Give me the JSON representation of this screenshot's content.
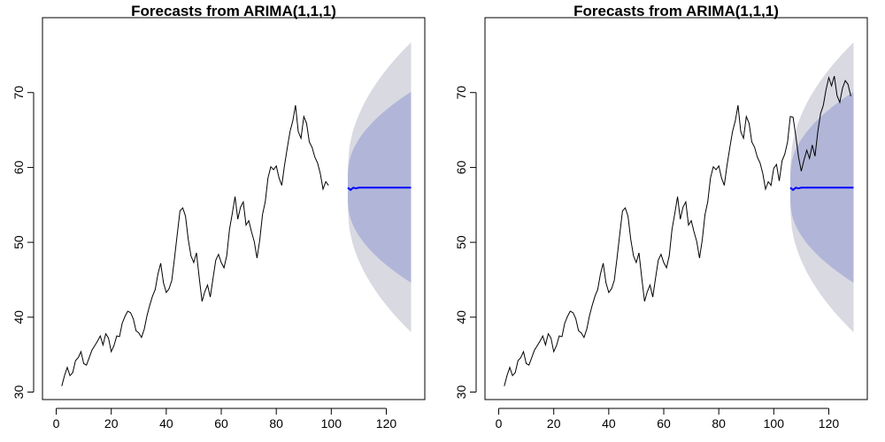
{
  "chart_data": [
    {
      "type": "line",
      "title": "Forecasts from ARIMA(1,1,1)",
      "xlabel": "",
      "ylabel": "",
      "xlim": [
        -5,
        134
      ],
      "ylim": [
        29,
        80
      ],
      "xticks": [
        "0",
        "20",
        "40",
        "60",
        "80",
        "100",
        "120"
      ],
      "yticks": [
        "30",
        "40",
        "50",
        "60",
        "70"
      ],
      "grid": false,
      "legend": "none",
      "series": [
        {
          "role": "observed",
          "color": "#000000",
          "x_start": 2,
          "values": [
            30.8,
            32.2,
            33.3,
            32.2,
            32.6,
            34.2,
            34.6,
            35.4,
            33.8,
            33.6,
            34.6,
            35.6,
            36.2,
            36.8,
            37.5,
            36.3,
            37.8,
            37.2,
            35.4,
            36.2,
            37.5,
            37.4,
            39.2,
            40.1,
            40.8,
            40.6,
            39.8,
            38.2,
            37.9,
            37.3,
            38.4,
            40.2,
            41.6,
            42.8,
            43.7,
            45.8,
            47.2,
            44.6,
            43.3,
            43.8,
            44.9,
            47.9,
            51.1,
            54.2,
            54.6,
            53.5,
            50.4,
            48.2,
            47.3,
            48.6,
            45.2,
            42.1,
            43.4,
            44.3,
            42.7,
            45.2,
            47.6,
            48.4,
            47.3,
            46.6,
            48.2,
            51.7,
            53.8,
            56.1,
            53.1,
            54.7,
            55.4,
            52.3,
            52.9,
            51.4,
            50.1,
            47.9,
            50.3,
            53.7,
            55.4,
            58.6,
            60.1,
            59.7,
            60.2,
            58.6,
            57.6,
            60.3,
            62.6,
            64.8,
            66.2,
            68.3,
            64.8,
            63.9,
            66.8,
            65.9,
            63.4,
            62.7,
            61.4,
            60.6,
            59.2,
            57.1,
            58.1,
            57.6
          ]
        },
        {
          "role": "forecast",
          "color": "#0000ff",
          "x_start": 106,
          "values": [
            57.3,
            57.0,
            57.3,
            57.2,
            57.3,
            57.3,
            57.3,
            57.3,
            57.3,
            57.3,
            57.3,
            57.3,
            57.3,
            57.3,
            57.3,
            57.3,
            57.3,
            57.3,
            57.3,
            57.3,
            57.3,
            57.3,
            57.3,
            57.3
          ]
        },
        {
          "role": "interval_80",
          "color": "#b1b6d8",
          "x_start": 106,
          "x_end": 129,
          "upper_start": 59.2,
          "upper_end": 70.1,
          "lower_start": 55.4,
          "lower_end": 44.6
        },
        {
          "role": "interval_95",
          "color": "#d9d9e2",
          "x_start": 106,
          "x_end": 129,
          "upper_start": 60.1,
          "upper_end": 76.7,
          "lower_start": 54.4,
          "lower_end": 38.0
        }
      ]
    },
    {
      "type": "line",
      "title": "Forecasts from ARIMA(1,1,1)",
      "xlabel": "",
      "ylabel": "",
      "xlim": [
        -5,
        134
      ],
      "ylim": [
        29,
        80
      ],
      "xticks": [
        "0",
        "20",
        "40",
        "60",
        "80",
        "100",
        "120"
      ],
      "yticks": [
        "30",
        "40",
        "50",
        "60",
        "70"
      ],
      "grid": false,
      "legend": "none",
      "series": [
        {
          "role": "observed",
          "color": "#000000",
          "x_start": 2,
          "values": [
            30.8,
            32.2,
            33.3,
            32.2,
            32.6,
            34.2,
            34.6,
            35.4,
            33.8,
            33.6,
            34.6,
            35.6,
            36.2,
            36.8,
            37.5,
            36.3,
            37.8,
            37.2,
            35.4,
            36.2,
            37.5,
            37.4,
            39.2,
            40.1,
            40.8,
            40.6,
            39.8,
            38.2,
            37.9,
            37.3,
            38.4,
            40.2,
            41.6,
            42.8,
            43.7,
            45.8,
            47.2,
            44.6,
            43.3,
            43.8,
            44.9,
            47.9,
            51.1,
            54.2,
            54.6,
            53.5,
            50.4,
            48.2,
            47.3,
            48.6,
            45.2,
            42.1,
            43.4,
            44.3,
            42.7,
            45.2,
            47.6,
            48.4,
            47.3,
            46.6,
            48.2,
            51.7,
            53.8,
            56.1,
            53.1,
            54.7,
            55.4,
            52.3,
            52.9,
            51.4,
            50.1,
            47.9,
            50.3,
            53.7,
            55.4,
            58.6,
            60.1,
            59.7,
            60.2,
            58.6,
            57.6,
            60.3,
            62.6,
            64.8,
            66.2,
            68.3,
            64.8,
            63.9,
            66.8,
            65.9,
            63.4,
            62.7,
            61.4,
            60.6,
            59.2,
            57.1,
            58.1,
            57.6,
            59.9,
            60.4,
            58.2,
            60.9,
            61.8,
            63.4,
            66.8,
            66.7,
            64.2,
            61.4,
            59.5,
            61.0,
            62.3,
            61.2,
            63.0,
            61.5,
            64.8,
            67.2,
            68.3,
            70.4,
            72.0,
            70.9,
            72.2,
            69.6,
            68.7,
            70.6,
            71.6,
            71.1,
            69.5
          ]
        },
        {
          "role": "forecast",
          "color": "#0000ff",
          "x_start": 106,
          "values": [
            57.3,
            57.0,
            57.3,
            57.2,
            57.3,
            57.3,
            57.3,
            57.3,
            57.3,
            57.3,
            57.3,
            57.3,
            57.3,
            57.3,
            57.3,
            57.3,
            57.3,
            57.3,
            57.3,
            57.3,
            57.3,
            57.3,
            57.3,
            57.3
          ]
        },
        {
          "role": "interval_80",
          "color": "#b1b6d8",
          "x_start": 106,
          "x_end": 129,
          "upper_start": 59.2,
          "upper_end": 70.1,
          "lower_start": 55.4,
          "lower_end": 44.6
        },
        {
          "role": "interval_95",
          "color": "#d9d9e2",
          "x_start": 106,
          "x_end": 129,
          "upper_start": 60.1,
          "upper_end": 76.7,
          "lower_start": 54.4,
          "lower_end": 38.0
        }
      ]
    }
  ]
}
